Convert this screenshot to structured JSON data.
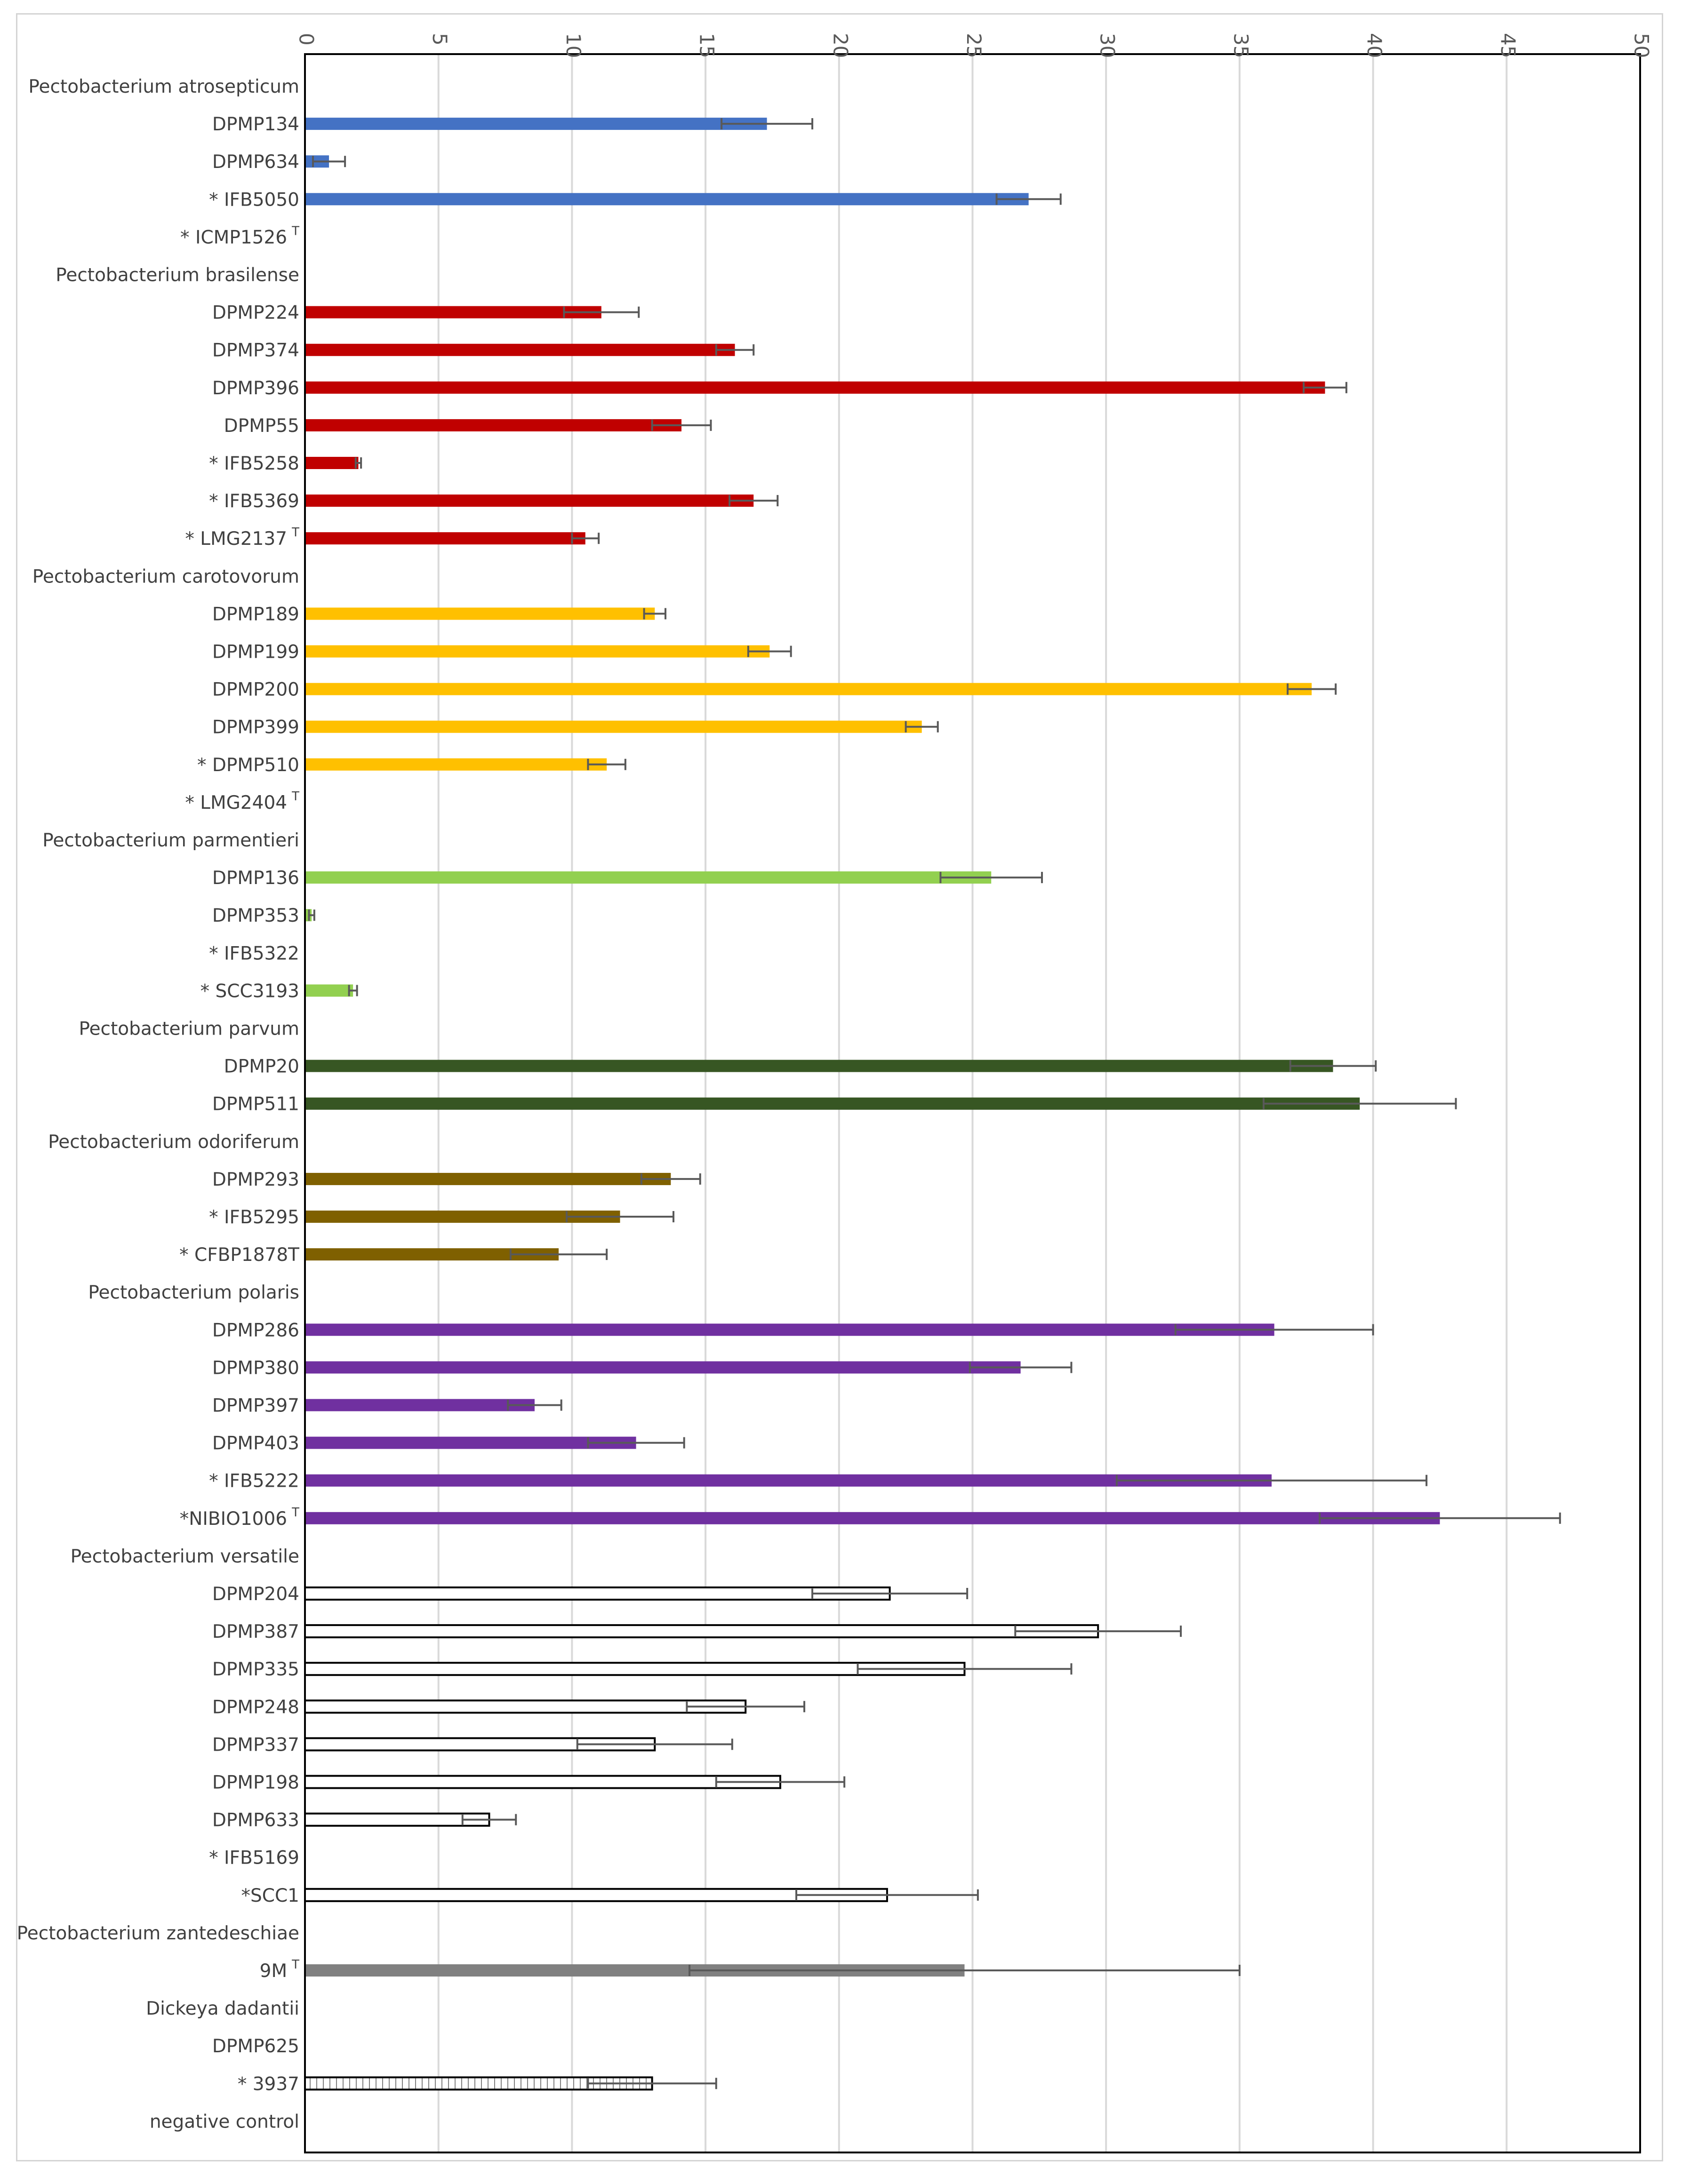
{
  "chart_data": {
    "type": "bar",
    "orientation": "horizontal",
    "title": "",
    "xlabel": "",
    "ylabel": "",
    "xlim": [
      0,
      50
    ],
    "x_ticks": [
      0,
      5,
      10,
      15,
      20,
      25,
      30,
      35,
      40,
      45,
      50
    ],
    "grid": true,
    "tick_label_rotation": "vertical",
    "colors": {
      "atrosepticum": "#4472C4",
      "brasilense": "#C00000",
      "carotovorum": "#FFC000",
      "parmentieri": "#92D050",
      "parvum": "#375623",
      "odoriferum": "#7F6000",
      "polaris": "#7030A0",
      "versatile": "#FFFFFF",
      "zantedeschiae": "#808080",
      "dickeya": "#FFFFFF",
      "axis": "#000000",
      "grid": "#d9d9d9",
      "error": "#595959"
    },
    "rows": [
      {
        "label": "Pectobacterium atrosepticum",
        "header": true
      },
      {
        "label": "DPMP134",
        "value": 17.3,
        "error": 1.7,
        "group": "atrosepticum"
      },
      {
        "label": "DPMP634",
        "value": 0.9,
        "error": 0.6,
        "group": "atrosepticum"
      },
      {
        "label": "* IFB5050",
        "value": 27.1,
        "error": 1.2,
        "group": "atrosepticum"
      },
      {
        "label": "* ICMP1526",
        "sup": "T",
        "value": null,
        "group": "atrosepticum"
      },
      {
        "label": "Pectobacterium brasilense",
        "header": true
      },
      {
        "label": "DPMP224",
        "value": 11.1,
        "error": 1.4,
        "group": "brasilense"
      },
      {
        "label": "DPMP374",
        "value": 16.1,
        "error": 0.7,
        "group": "brasilense"
      },
      {
        "label": "DPMP396",
        "value": 38.2,
        "error": 0.8,
        "group": "brasilense"
      },
      {
        "label": "DPMP55",
        "value": 14.1,
        "error": 1.1,
        "group": "brasilense"
      },
      {
        "label": "* IFB5258",
        "value": 2.0,
        "error": 0.1,
        "group": "brasilense"
      },
      {
        "label": "* IFB5369",
        "value": 16.8,
        "error": 0.9,
        "group": "brasilense"
      },
      {
        "label": "* LMG2137",
        "sup": "T",
        "value": 10.5,
        "error": 0.5,
        "group": "brasilense"
      },
      {
        "label": "Pectobacterium carotovorum",
        "header": true
      },
      {
        "label": "DPMP189",
        "value": 13.1,
        "error": 0.4,
        "group": "carotovorum"
      },
      {
        "label": "DPMP199",
        "value": 17.4,
        "error": 0.8,
        "group": "carotovorum"
      },
      {
        "label": "DPMP200",
        "value": 37.7,
        "error": 0.9,
        "group": "carotovorum"
      },
      {
        "label": "DPMP399",
        "value": 23.1,
        "error": 0.6,
        "group": "carotovorum"
      },
      {
        "label": "* DPMP510",
        "value": 11.3,
        "error": 0.7,
        "group": "carotovorum"
      },
      {
        "label": "* LMG2404",
        "sup": "T",
        "value": null,
        "group": "carotovorum"
      },
      {
        "label": "Pectobacterium parmentieri",
        "header": true
      },
      {
        "label": "DPMP136",
        "value": 25.7,
        "error": 1.9,
        "group": "parmentieri"
      },
      {
        "label": "DPMP353",
        "value": 0.25,
        "error": 0.1,
        "group": "parmentieri"
      },
      {
        "label": "* IFB5322",
        "value": null,
        "group": "parmentieri"
      },
      {
        "label": "* SCC3193",
        "value": 1.8,
        "error": 0.15,
        "group": "parmentieri"
      },
      {
        "label": "Pectobacterium parvum",
        "header": true
      },
      {
        "label": "DPMP20",
        "value": 38.5,
        "error": 1.6,
        "group": "parvum"
      },
      {
        "label": "DPMP511",
        "value": 39.5,
        "error": 3.6,
        "group": "parvum"
      },
      {
        "label": "Pectobacterium odoriferum",
        "header": true
      },
      {
        "label": "DPMP293",
        "value": 13.7,
        "error": 1.1,
        "group": "odoriferum"
      },
      {
        "label": "* IFB5295",
        "value": 11.8,
        "error": 2.0,
        "group": "odoriferum"
      },
      {
        "label": "* CFBP1878T",
        "value": 9.5,
        "error": 1.8,
        "group": "odoriferum"
      },
      {
        "label": "Pectobacterium polaris",
        "header": true
      },
      {
        "label": "DPMP286",
        "value": 36.3,
        "error": 3.7,
        "group": "polaris"
      },
      {
        "label": "DPMP380",
        "value": 26.8,
        "error": 1.9,
        "group": "polaris"
      },
      {
        "label": "DPMP397",
        "value": 8.6,
        "error": 1.0,
        "group": "polaris"
      },
      {
        "label": "DPMP403",
        "value": 12.4,
        "error": 1.8,
        "group": "polaris"
      },
      {
        "label": "* IFB5222",
        "value": 36.2,
        "error": 5.8,
        "group": "polaris"
      },
      {
        "label": "*NIBIO1006",
        "sup": "T",
        "value": 42.5,
        "error": 4.5,
        "group": "polaris"
      },
      {
        "label": "Pectobacterium versatile",
        "header": true
      },
      {
        "label": "DPMP204",
        "value": 21.9,
        "error": 2.9,
        "group": "versatile"
      },
      {
        "label": "DPMP387",
        "value": 29.7,
        "error": 3.1,
        "group": "versatile"
      },
      {
        "label": "DPMP335",
        "value": 24.7,
        "error": 4.0,
        "group": "versatile"
      },
      {
        "label": "DPMP248",
        "value": 16.5,
        "error": 2.2,
        "group": "versatile"
      },
      {
        "label": "DPMP337",
        "value": 13.1,
        "error": 2.9,
        "group": "versatile"
      },
      {
        "label": "DPMP198",
        "value": 17.8,
        "error": 2.4,
        "group": "versatile"
      },
      {
        "label": "DPMP633",
        "value": 6.9,
        "error": 1.0,
        "group": "versatile"
      },
      {
        "label": "* IFB5169",
        "value": null,
        "group": "versatile"
      },
      {
        "label": "*SCC1",
        "value": 21.8,
        "error": 3.4,
        "group": "versatile"
      },
      {
        "label": "Pectobacterium zantedeschiae",
        "header": true
      },
      {
        "label": "9M",
        "sup": "T",
        "value": 24.7,
        "error": 10.3,
        "group": "zantedeschiae"
      },
      {
        "label": "Dickeya dadantii",
        "header": true
      },
      {
        "label": "DPMP625",
        "value": null,
        "group": "dickeya"
      },
      {
        "label": "* 3937",
        "value": 13.0,
        "error": 2.4,
        "group": "dickeya",
        "hatched": true
      },
      {
        "label": "negative control",
        "value": null,
        "group": "control"
      }
    ]
  }
}
